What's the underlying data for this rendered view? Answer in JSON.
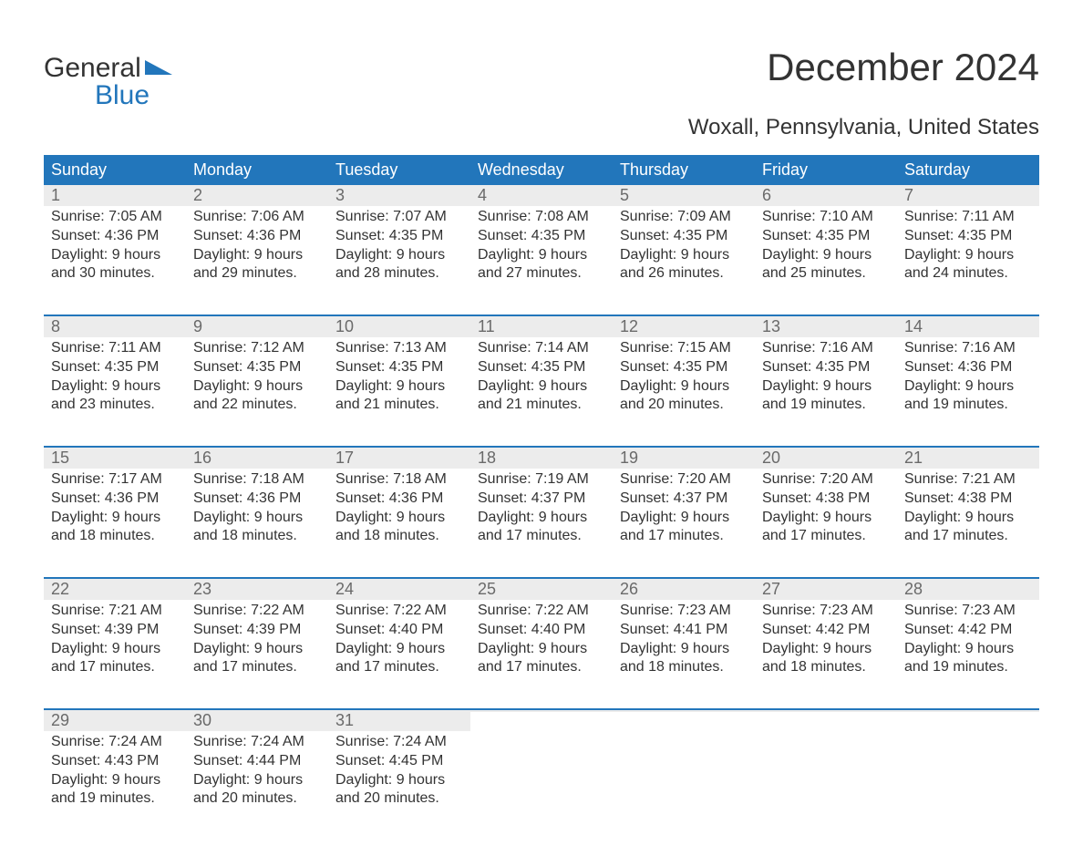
{
  "logo": {
    "line1": "General",
    "line2": "Blue"
  },
  "title": "December 2024",
  "subtitle": "Woxall, Pennsylvania, United States",
  "colors": {
    "header_bg": "#2276bb",
    "header_text": "#ffffff",
    "daynum_bg": "#ececec",
    "daynum_text": "#6a6a6a",
    "body_text": "#333333",
    "week_border": "#2276bb",
    "page_bg": "#ffffff",
    "logo_accent": "#2276bb"
  },
  "typography": {
    "title_fontsize": 42,
    "subtitle_fontsize": 24,
    "dayheader_fontsize": 18,
    "daynum_fontsize": 18,
    "body_fontsize": 16,
    "font_family": "Arial"
  },
  "day_headers": [
    "Sunday",
    "Monday",
    "Tuesday",
    "Wednesday",
    "Thursday",
    "Friday",
    "Saturday"
  ],
  "weeks": [
    [
      {
        "day": "1",
        "sunrise": "Sunrise: 7:05 AM",
        "sunset": "Sunset: 4:36 PM",
        "dl1": "Daylight: 9 hours",
        "dl2": "and 30 minutes."
      },
      {
        "day": "2",
        "sunrise": "Sunrise: 7:06 AM",
        "sunset": "Sunset: 4:36 PM",
        "dl1": "Daylight: 9 hours",
        "dl2": "and 29 minutes."
      },
      {
        "day": "3",
        "sunrise": "Sunrise: 7:07 AM",
        "sunset": "Sunset: 4:35 PM",
        "dl1": "Daylight: 9 hours",
        "dl2": "and 28 minutes."
      },
      {
        "day": "4",
        "sunrise": "Sunrise: 7:08 AM",
        "sunset": "Sunset: 4:35 PM",
        "dl1": "Daylight: 9 hours",
        "dl2": "and 27 minutes."
      },
      {
        "day": "5",
        "sunrise": "Sunrise: 7:09 AM",
        "sunset": "Sunset: 4:35 PM",
        "dl1": "Daylight: 9 hours",
        "dl2": "and 26 minutes."
      },
      {
        "day": "6",
        "sunrise": "Sunrise: 7:10 AM",
        "sunset": "Sunset: 4:35 PM",
        "dl1": "Daylight: 9 hours",
        "dl2": "and 25 minutes."
      },
      {
        "day": "7",
        "sunrise": "Sunrise: 7:11 AM",
        "sunset": "Sunset: 4:35 PM",
        "dl1": "Daylight: 9 hours",
        "dl2": "and 24 minutes."
      }
    ],
    [
      {
        "day": "8",
        "sunrise": "Sunrise: 7:11 AM",
        "sunset": "Sunset: 4:35 PM",
        "dl1": "Daylight: 9 hours",
        "dl2": "and 23 minutes."
      },
      {
        "day": "9",
        "sunrise": "Sunrise: 7:12 AM",
        "sunset": "Sunset: 4:35 PM",
        "dl1": "Daylight: 9 hours",
        "dl2": "and 22 minutes."
      },
      {
        "day": "10",
        "sunrise": "Sunrise: 7:13 AM",
        "sunset": "Sunset: 4:35 PM",
        "dl1": "Daylight: 9 hours",
        "dl2": "and 21 minutes."
      },
      {
        "day": "11",
        "sunrise": "Sunrise: 7:14 AM",
        "sunset": "Sunset: 4:35 PM",
        "dl1": "Daylight: 9 hours",
        "dl2": "and 21 minutes."
      },
      {
        "day": "12",
        "sunrise": "Sunrise: 7:15 AM",
        "sunset": "Sunset: 4:35 PM",
        "dl1": "Daylight: 9 hours",
        "dl2": "and 20 minutes."
      },
      {
        "day": "13",
        "sunrise": "Sunrise: 7:16 AM",
        "sunset": "Sunset: 4:35 PM",
        "dl1": "Daylight: 9 hours",
        "dl2": "and 19 minutes."
      },
      {
        "day": "14",
        "sunrise": "Sunrise: 7:16 AM",
        "sunset": "Sunset: 4:36 PM",
        "dl1": "Daylight: 9 hours",
        "dl2": "and 19 minutes."
      }
    ],
    [
      {
        "day": "15",
        "sunrise": "Sunrise: 7:17 AM",
        "sunset": "Sunset: 4:36 PM",
        "dl1": "Daylight: 9 hours",
        "dl2": "and 18 minutes."
      },
      {
        "day": "16",
        "sunrise": "Sunrise: 7:18 AM",
        "sunset": "Sunset: 4:36 PM",
        "dl1": "Daylight: 9 hours",
        "dl2": "and 18 minutes."
      },
      {
        "day": "17",
        "sunrise": "Sunrise: 7:18 AM",
        "sunset": "Sunset: 4:36 PM",
        "dl1": "Daylight: 9 hours",
        "dl2": "and 18 minutes."
      },
      {
        "day": "18",
        "sunrise": "Sunrise: 7:19 AM",
        "sunset": "Sunset: 4:37 PM",
        "dl1": "Daylight: 9 hours",
        "dl2": "and 17 minutes."
      },
      {
        "day": "19",
        "sunrise": "Sunrise: 7:20 AM",
        "sunset": "Sunset: 4:37 PM",
        "dl1": "Daylight: 9 hours",
        "dl2": "and 17 minutes."
      },
      {
        "day": "20",
        "sunrise": "Sunrise: 7:20 AM",
        "sunset": "Sunset: 4:38 PM",
        "dl1": "Daylight: 9 hours",
        "dl2": "and 17 minutes."
      },
      {
        "day": "21",
        "sunrise": "Sunrise: 7:21 AM",
        "sunset": "Sunset: 4:38 PM",
        "dl1": "Daylight: 9 hours",
        "dl2": "and 17 minutes."
      }
    ],
    [
      {
        "day": "22",
        "sunrise": "Sunrise: 7:21 AM",
        "sunset": "Sunset: 4:39 PM",
        "dl1": "Daylight: 9 hours",
        "dl2": "and 17 minutes."
      },
      {
        "day": "23",
        "sunrise": "Sunrise: 7:22 AM",
        "sunset": "Sunset: 4:39 PM",
        "dl1": "Daylight: 9 hours",
        "dl2": "and 17 minutes."
      },
      {
        "day": "24",
        "sunrise": "Sunrise: 7:22 AM",
        "sunset": "Sunset: 4:40 PM",
        "dl1": "Daylight: 9 hours",
        "dl2": "and 17 minutes."
      },
      {
        "day": "25",
        "sunrise": "Sunrise: 7:22 AM",
        "sunset": "Sunset: 4:40 PM",
        "dl1": "Daylight: 9 hours",
        "dl2": "and 17 minutes."
      },
      {
        "day": "26",
        "sunrise": "Sunrise: 7:23 AM",
        "sunset": "Sunset: 4:41 PM",
        "dl1": "Daylight: 9 hours",
        "dl2": "and 18 minutes."
      },
      {
        "day": "27",
        "sunrise": "Sunrise: 7:23 AM",
        "sunset": "Sunset: 4:42 PM",
        "dl1": "Daylight: 9 hours",
        "dl2": "and 18 minutes."
      },
      {
        "day": "28",
        "sunrise": "Sunrise: 7:23 AM",
        "sunset": "Sunset: 4:42 PM",
        "dl1": "Daylight: 9 hours",
        "dl2": "and 19 minutes."
      }
    ],
    [
      {
        "day": "29",
        "sunrise": "Sunrise: 7:24 AM",
        "sunset": "Sunset: 4:43 PM",
        "dl1": "Daylight: 9 hours",
        "dl2": "and 19 minutes."
      },
      {
        "day": "30",
        "sunrise": "Sunrise: 7:24 AM",
        "sunset": "Sunset: 4:44 PM",
        "dl1": "Daylight: 9 hours",
        "dl2": "and 20 minutes."
      },
      {
        "day": "31",
        "sunrise": "Sunrise: 7:24 AM",
        "sunset": "Sunset: 4:45 PM",
        "dl1": "Daylight: 9 hours",
        "dl2": "and 20 minutes."
      },
      {
        "empty": true
      },
      {
        "empty": true
      },
      {
        "empty": true
      },
      {
        "empty": true
      }
    ]
  ]
}
